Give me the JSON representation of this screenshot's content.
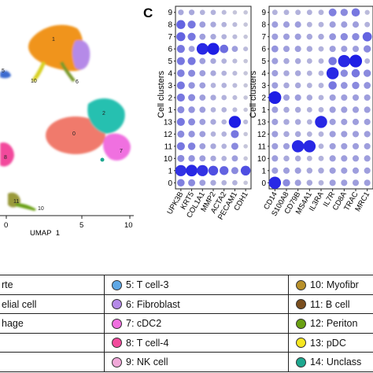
{
  "panel_c_letter": "C",
  "umap": {
    "x_axis_label": "UMAP_1",
    "x_tick_labels": [
      "0",
      "5",
      "10"
    ],
    "cluster_labels": [
      "1",
      "10",
      "6",
      "0",
      "2",
      "7",
      "5",
      "8",
      "11",
      "10"
    ]
  },
  "chart_data": [
    {
      "type": "scatter",
      "subtype": "dot-plot",
      "ylabel": "Cell clusters",
      "categories_y": [
        "9",
        "8",
        "7",
        "6",
        "5",
        "4",
        "3",
        "2",
        "1",
        "13",
        "12",
        "11",
        "10",
        "1",
        "0"
      ],
      "genes_x": [
        "UPK3B",
        "KRT5",
        "COL1A1",
        "MMP2",
        "ACTA2",
        "PECAM1",
        "CDH1"
      ],
      "color_scale": {
        "low": "#d9d9d9",
        "high": "#1414e6"
      }
    },
    {
      "type": "scatter",
      "subtype": "dot-plot",
      "ylabel": "Cell clusters",
      "categories_y": [
        "9",
        "8",
        "7",
        "6",
        "5",
        "4",
        "3",
        "2",
        "1",
        "13",
        "12",
        "11",
        "10",
        "1",
        "0"
      ],
      "genes_x": [
        "CD14",
        "S100A8",
        "CD79B",
        "MS4A1",
        "IL3RA",
        "IL7R",
        "CD8A",
        "TRAC",
        "MRC1"
      ],
      "color_scale": {
        "low": "#d9d9d9",
        "high": "#1414e6"
      }
    }
  ],
  "legend": {
    "rows": [
      [
        {
          "text": "rte",
          "color": ""
        },
        {
          "text": "5: T cell-3",
          "color": "#5fa8e6"
        },
        {
          "text": "10: Myofibr",
          "color": "#b8902a"
        }
      ],
      [
        {
          "text": "elial cell",
          "color": ""
        },
        {
          "text": "6: Fibroblast",
          "color": "#b58ae8"
        },
        {
          "text": "11: B cell",
          "color": "#7a4e1e"
        }
      ],
      [
        {
          "text": "hage",
          "color": ""
        },
        {
          "text": "7: cDC2",
          "color": "#f070e0"
        },
        {
          "text": "12: Periton",
          "color": "#6aa012"
        }
      ],
      [
        {
          "text": "",
          "color": ""
        },
        {
          "text": "8: T cell-4",
          "color": "#f24a9c"
        },
        {
          "text": "13: pDC",
          "color": "#f6e620"
        }
      ],
      [
        {
          "text": "",
          "color": ""
        },
        {
          "text": "9: NK cell",
          "color": "#f0a8d8"
        },
        {
          "text": "14: Unclass",
          "color": "#1ea890"
        }
      ]
    ]
  }
}
